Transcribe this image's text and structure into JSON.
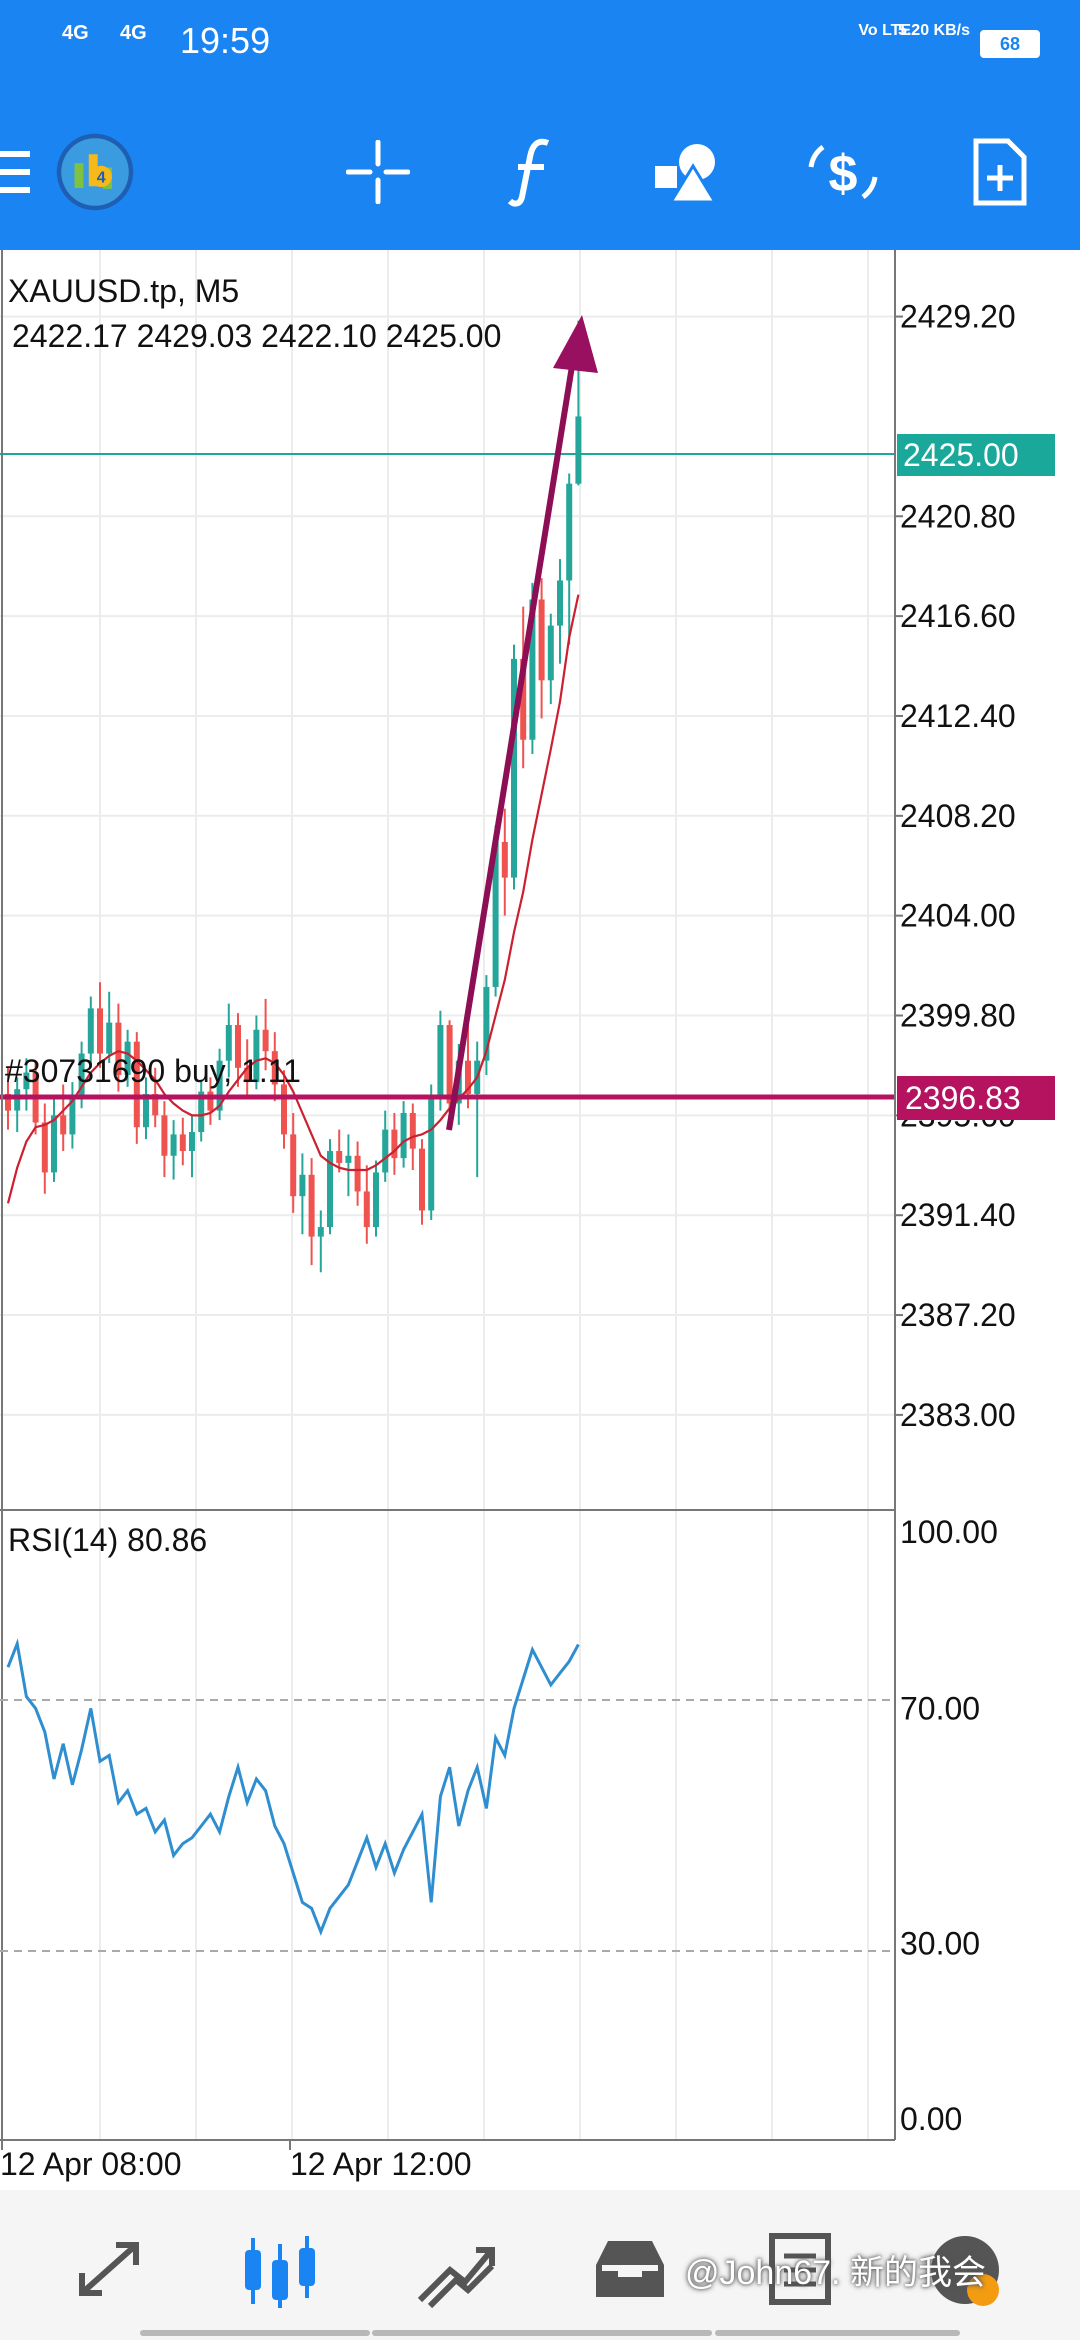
{
  "status_bar": {
    "signal1": "4G",
    "signal2": "4G",
    "time": "19:59",
    "network": "Vo LTE2",
    "speed": "5.20 KB/s",
    "battery": "68"
  },
  "toolbar": {
    "icons": [
      "menu-icon",
      "metatrader-logo-icon",
      "crosshair-icon",
      "function-icon",
      "objects-icon",
      "trade-icon",
      "new-order-icon"
    ]
  },
  "chart": {
    "symbol_label": "XAUUSD.tp, M5",
    "ohlc_label": "2422.17 2429.03 2422.10 2425.00",
    "current_price": "2425.00",
    "order_price": "2396.83",
    "order_label": "#30731690 buy, 1.11",
    "price_ticks": [
      "2429.20",
      "2420.80",
      "2416.60",
      "2412.40",
      "2408.20",
      "2404.00",
      "2399.80",
      "2395.60",
      "2391.40",
      "2387.20",
      "2383.00"
    ],
    "time_labels": [
      "12 Apr 08:00",
      "12 Apr 12:00"
    ],
    "colors": {
      "bull": "#26a69a",
      "bear": "#ef5350",
      "ma": "#cc1f2f",
      "order_line": "#b5125f",
      "price_line": "#1aa89a",
      "rsi": "#2f8ed0"
    }
  },
  "rsi": {
    "label": "RSI(14) 80.86",
    "ticks": [
      "100.00",
      "70.00",
      "30.00",
      "0.00"
    ]
  },
  "chart_data": {
    "type": "candlestick",
    "title": "XAUUSD.tp, M5",
    "y_range": [
      2379,
      2432
    ],
    "candles": [
      [
        2396.5,
        2397.6,
        2395.0,
        2395.8
      ],
      [
        2395.8,
        2397.2,
        2394.9,
        2396.7
      ],
      [
        2396.7,
        2398.0,
        2395.8,
        2397.4
      ],
      [
        2397.4,
        2397.9,
        2394.8,
        2395.3
      ],
      [
        2395.3,
        2396.1,
        2392.3,
        2393.2
      ],
      [
        2393.2,
        2396.4,
        2392.8,
        2395.6
      ],
      [
        2395.6,
        2396.9,
        2394.1,
        2394.8
      ],
      [
        2394.8,
        2397.0,
        2394.2,
        2396.3
      ],
      [
        2396.3,
        2398.7,
        2395.9,
        2398.2
      ],
      [
        2398.2,
        2400.6,
        2397.6,
        2400.1
      ],
      [
        2400.1,
        2401.2,
        2397.6,
        2398.2
      ],
      [
        2398.2,
        2400.8,
        2397.8,
        2399.5
      ],
      [
        2399.5,
        2400.3,
        2396.6,
        2397.3
      ],
      [
        2397.3,
        2399.2,
        2396.8,
        2398.7
      ],
      [
        2398.7,
        2399.1,
        2394.4,
        2395.1
      ],
      [
        2395.1,
        2397.2,
        2394.6,
        2396.5
      ],
      [
        2396.5,
        2397.6,
        2395.1,
        2395.6
      ],
      [
        2395.6,
        2396.2,
        2393.0,
        2393.9
      ],
      [
        2393.9,
        2395.4,
        2392.9,
        2394.8
      ],
      [
        2394.8,
        2395.5,
        2393.5,
        2394.1
      ],
      [
        2394.1,
        2395.6,
        2393.0,
        2394.9
      ],
      [
        2394.9,
        2397.1,
        2394.5,
        2396.6
      ],
      [
        2396.6,
        2397.2,
        2395.2,
        2395.8
      ],
      [
        2395.8,
        2398.4,
        2395.4,
        2397.9
      ],
      [
        2397.9,
        2400.3,
        2397.2,
        2399.4
      ],
      [
        2399.4,
        2399.9,
        2396.8,
        2397.6
      ],
      [
        2397.6,
        2398.8,
        2396.4,
        2397.0
      ],
      [
        2397.0,
        2399.8,
        2396.7,
        2399.2
      ],
      [
        2399.2,
        2400.5,
        2397.5,
        2398.3
      ],
      [
        2398.3,
        2399.1,
        2396.2,
        2396.9
      ],
      [
        2396.9,
        2397.5,
        2394.2,
        2394.8
      ],
      [
        2394.8,
        2395.7,
        2391.5,
        2392.2
      ],
      [
        2392.2,
        2394.0,
        2390.6,
        2393.1
      ],
      [
        2393.1,
        2393.8,
        2389.3,
        2390.5
      ],
      [
        2390.5,
        2391.6,
        2389.0,
        2390.9
      ],
      [
        2390.9,
        2394.6,
        2390.6,
        2394.1
      ],
      [
        2394.1,
        2395.0,
        2393.2,
        2393.6
      ],
      [
        2393.6,
        2394.8,
        2392.2,
        2393.9
      ],
      [
        2393.9,
        2394.5,
        2391.8,
        2392.4
      ],
      [
        2392.4,
        2393.5,
        2390.2,
        2390.9
      ],
      [
        2390.9,
        2393.7,
        2390.5,
        2393.2
      ],
      [
        2393.2,
        2395.8,
        2392.8,
        2395.0
      ],
      [
        2395.0,
        2395.7,
        2393.1,
        2393.8
      ],
      [
        2393.8,
        2396.2,
        2393.4,
        2395.7
      ],
      [
        2395.7,
        2396.1,
        2393.3,
        2394.2
      ],
      [
        2394.2,
        2394.6,
        2391.0,
        2391.6
      ],
      [
        2391.6,
        2396.9,
        2391.2,
        2396.3
      ],
      [
        2396.3,
        2400.0,
        2395.8,
        2399.4
      ],
      [
        2399.4,
        2399.6,
        2395.7,
        2396.1
      ],
      [
        2396.1,
        2398.6,
        2395.2,
        2397.9
      ],
      [
        2397.9,
        2399.6,
        2395.9,
        2396.5
      ],
      [
        2396.5,
        2398.7,
        2393.0,
        2397.9
      ],
      [
        2397.9,
        2401.5,
        2397.3,
        2401.0
      ],
      [
        2401.0,
        2407.8,
        2400.6,
        2407.1
      ],
      [
        2407.1,
        2408.5,
        2404.0,
        2405.6
      ],
      [
        2405.6,
        2415.4,
        2405.1,
        2414.8
      ],
      [
        2414.8,
        2417.0,
        2410.2,
        2411.4
      ],
      [
        2411.4,
        2418.0,
        2410.8,
        2417.3
      ],
      [
        2417.3,
        2418.2,
        2412.3,
        2413.9
      ],
      [
        2413.9,
        2416.7,
        2412.9,
        2416.2
      ],
      [
        2416.2,
        2419.0,
        2414.6,
        2418.1
      ],
      [
        2418.1,
        2422.6,
        2415.4,
        2422.17
      ],
      [
        2422.17,
        2429.03,
        2422.1,
        2425.0
      ]
    ],
    "ma_series": [
      2391.9,
      2393.4,
      2394.5,
      2395.1,
      2395.2,
      2395.4,
      2395.8,
      2396.2,
      2396.8,
      2397.4,
      2397.8,
      2398.1,
      2398.3,
      2398.2,
      2397.9,
      2397.5,
      2397.1,
      2396.5,
      2396.1,
      2395.8,
      2395.6,
      2395.6,
      2395.7,
      2396.0,
      2396.6,
      2397.1,
      2397.6,
      2397.9,
      2398.0,
      2397.8,
      2397.3,
      2396.6,
      2395.7,
      2394.8,
      2393.9,
      2393.6,
      2393.4,
      2393.3,
      2393.3,
      2393.3,
      2393.5,
      2393.8,
      2394.1,
      2394.5,
      2394.7,
      2394.8,
      2395.0,
      2395.4,
      2395.9,
      2396.3,
      2396.7,
      2397.2,
      2398.3,
      2399.8,
      2401.3,
      2403.3,
      2405.0,
      2407.2,
      2409.1,
      2411.0,
      2413.0,
      2415.7,
      2417.5
    ],
    "rsi_series": [
      77,
      81,
      72,
      70,
      66,
      58,
      64,
      57,
      63,
      70,
      61,
      62,
      54,
      56,
      52,
      53,
      49,
      51,
      45,
      47,
      48,
      50,
      52,
      49,
      55,
      60,
      54,
      58,
      56,
      50,
      47,
      42,
      37,
      36,
      32,
      36,
      38,
      40,
      44,
      48,
      43,
      47,
      42,
      46,
      49,
      52,
      37,
      55,
      60,
      50,
      56,
      60,
      53,
      65,
      62,
      70,
      75,
      80,
      77,
      74,
      76,
      78,
      80.86
    ]
  }
}
